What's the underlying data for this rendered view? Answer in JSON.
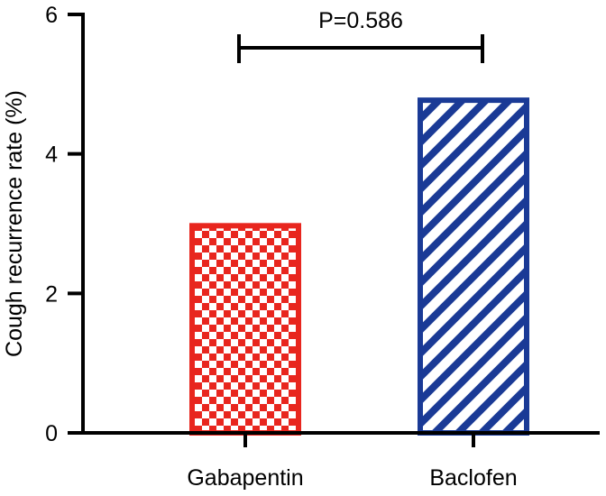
{
  "chart_data": {
    "type": "bar",
    "categories": [
      "Gabapentin",
      "Baclofen"
    ],
    "values": [
      2.97,
      4.77
    ],
    "title": "",
    "xlabel": "",
    "ylabel": "Cough recurrence rate (%)",
    "ylim": [
      0,
      6
    ],
    "yticks": [
      "0",
      "2",
      "4",
      "6"
    ],
    "grid": false,
    "legend": "none",
    "bar_colors": [
      "#e8261e",
      "#1a3a96"
    ],
    "bar_patterns": [
      "checkerboard",
      "diagonal-hatch"
    ],
    "annotation": {
      "text": "P=0.586",
      "between": [
        "Gabapentin",
        "Baclofen"
      ]
    }
  }
}
